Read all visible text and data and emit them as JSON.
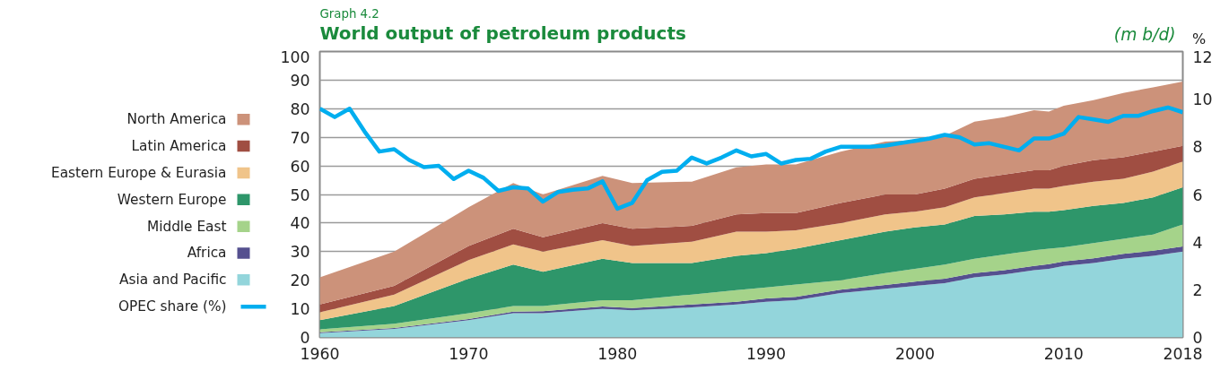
{
  "chart_data": {
    "type": "area",
    "stacked": true,
    "title": "World output of petroleum products",
    "y2label": "%",
    "annotations": [
      "Graph 4.2",
      "(m b/d)"
    ],
    "x": [
      1960,
      1965,
      1970,
      1973,
      1975,
      1979,
      1981,
      1985,
      1988,
      1990,
      1992,
      1995,
      1998,
      2000,
      2002,
      2004,
      2006,
      2008,
      2009,
      2010,
      2012,
      2014,
      2016,
      2018
    ],
    "xlim": [
      1960,
      2018
    ],
    "xticks": [
      1960,
      1970,
      1980,
      1990,
      2000,
      2010,
      2018
    ],
    "ylim": [
      0,
      100
    ],
    "yticks": [
      0,
      10,
      20,
      30,
      40,
      50,
      60,
      70,
      80,
      90,
      100
    ],
    "y2lim": [
      0,
      12
    ],
    "y2ticks": [
      0,
      2,
      4,
      6,
      8,
      10,
      12
    ],
    "grid": "y",
    "legend": "left",
    "series": [
      {
        "name": "Asia and Pacific",
        "color": "#93d5db",
        "values": [
          1.5,
          3.0,
          6.0,
          8.5,
          8.5,
          10.0,
          9.5,
          10.5,
          11.5,
          12.5,
          13.0,
          15.5,
          17.0,
          18.0,
          19.0,
          21.0,
          22.0,
          23.5,
          24.0,
          25.0,
          26.0,
          27.5,
          28.5,
          30.0
        ]
      },
      {
        "name": "Africa",
        "color": "#55508f",
        "values": [
          0.3,
          0.3,
          0.4,
          0.5,
          0.7,
          0.8,
          0.8,
          1.0,
          1.0,
          1.1,
          1.2,
          1.2,
          1.3,
          1.5,
          1.5,
          1.5,
          1.5,
          1.5,
          1.6,
          1.6,
          1.7,
          1.7,
          1.8,
          1.8
        ]
      },
      {
        "name": "Middle East",
        "color": "#a5d38a",
        "values": [
          1.0,
          1.5,
          2.1,
          2.0,
          1.8,
          2.2,
          2.7,
          3.5,
          4.0,
          3.9,
          4.3,
          3.3,
          4.2,
          4.5,
          5.0,
          5.0,
          5.5,
          5.5,
          5.4,
          4.9,
          5.3,
          5.3,
          5.7,
          7.7
        ]
      },
      {
        "name": "Western Europe",
        "color": "#2e966a",
        "values": [
          3.2,
          6.2,
          12.0,
          14.5,
          12.0,
          14.5,
          13.0,
          11.0,
          12.0,
          12.0,
          12.5,
          14.0,
          14.5,
          14.5,
          14.0,
          15.0,
          14.0,
          13.5,
          13.0,
          13.0,
          13.0,
          12.5,
          13.0,
          13.0
        ]
      },
      {
        "name": "Eastern Europe & Eurasia",
        "color": "#f0c48a",
        "values": [
          2.8,
          4.0,
          6.5,
          7.0,
          7.0,
          6.5,
          6.0,
          7.5,
          8.5,
          7.5,
          6.5,
          6.0,
          6.0,
          5.5,
          6.0,
          6.5,
          7.5,
          8.0,
          8.0,
          8.5,
          8.5,
          8.5,
          9.0,
          9.0
        ]
      },
      {
        "name": "Latin America",
        "color": "#a04e42",
        "values": [
          2.7,
          3.0,
          5.0,
          5.5,
          5.0,
          6.0,
          6.0,
          5.5,
          6.0,
          6.5,
          6.0,
          7.0,
          7.0,
          6.0,
          6.5,
          6.5,
          6.5,
          6.5,
          6.5,
          7.0,
          7.5,
          7.5,
          7.0,
          5.5
        ]
      },
      {
        "name": "North America",
        "color": "#cc927a",
        "values": [
          9.5,
          12.0,
          13.5,
          16.0,
          15.0,
          16.5,
          16.0,
          15.5,
          16.5,
          17.0,
          17.0,
          18.0,
          18.5,
          19.0,
          18.5,
          20.0,
          20.0,
          21.0,
          20.5,
          21.0,
          21.0,
          22.5,
          22.5,
          22.5
        ]
      },
      {
        "name": "OPEC share (%)",
        "type": "line",
        "axis": "y2",
        "color": "#00aeef",
        "x": [
          1960,
          1961,
          1962,
          1963,
          1964,
          1965,
          1966,
          1967,
          1968,
          1969,
          1970,
          1971,
          1972,
          1973,
          1974,
          1975,
          1976,
          1977,
          1978,
          1979,
          1980,
          1981,
          1982,
          1983,
          1984,
          1985,
          1986,
          1987,
          1988,
          1989,
          1990,
          1991,
          1992,
          1993,
          1994,
          1995,
          1996,
          1997,
          1998,
          1999,
          2000,
          2001,
          2002,
          2003,
          2004,
          2005,
          2006,
          2007,
          2008,
          2009,
          2010,
          2011,
          2012,
          2013,
          2014,
          2015,
          2016,
          2017,
          2018
        ],
        "values": [
          9.6,
          9.25,
          9.6,
          8.65,
          7.8,
          7.9,
          7.45,
          7.15,
          7.2,
          6.65,
          7.0,
          6.7,
          6.15,
          6.3,
          6.25,
          5.7,
          6.1,
          6.2,
          6.25,
          6.55,
          5.4,
          5.65,
          6.6,
          6.95,
          7.0,
          7.55,
          7.3,
          7.55,
          7.85,
          7.6,
          7.7,
          7.3,
          7.45,
          7.5,
          7.8,
          8.0,
          8.0,
          8.0,
          8.05,
          8.15,
          8.25,
          8.35,
          8.5,
          8.4,
          8.1,
          8.15,
          8.0,
          7.85,
          8.35,
          8.35,
          8.55,
          9.25,
          9.15,
          9.05,
          9.3,
          9.3,
          9.5,
          9.65,
          9.45
        ]
      }
    ]
  }
}
